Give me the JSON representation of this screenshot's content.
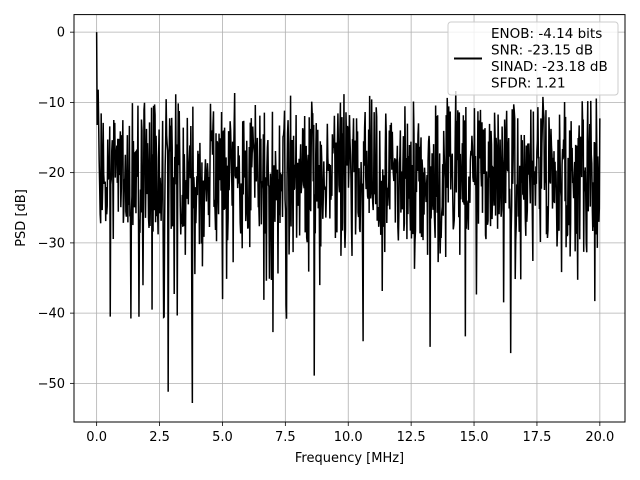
{
  "chart_data": {
    "type": "line",
    "title": "",
    "xlabel": "Frequency [MHz]",
    "ylabel": "PSD [dB]",
    "xlim": [
      -0.9,
      21.0
    ],
    "ylim": [
      -55.5,
      2.5
    ],
    "xticks": [
      0.0,
      2.5,
      5.0,
      7.5,
      10.0,
      12.5,
      15.0,
      17.5,
      20.0
    ],
    "xtick_labels": [
      "0.0",
      "2.5",
      "5.0",
      "7.5",
      "10.0",
      "12.5",
      "15.0",
      "17.5",
      "20.0"
    ],
    "yticks": [
      0,
      -10,
      -20,
      -30,
      -40,
      -50
    ],
    "ytick_labels": [
      "0",
      "−10",
      "−20",
      "−30",
      "−40",
      "−50"
    ],
    "grid": true,
    "legend_position": "top-right",
    "series": [
      {
        "color": "#000000",
        "description": "noisy PSD trace, peak near 0 dB at 0 MHz, mostly between -10 and -35 dB",
        "x_range": [
          0.0,
          20.0
        ],
        "points": 1000,
        "min_points": [
          {
            "x": 0.55,
            "y": -40.5
          },
          {
            "x": 2.2,
            "y": -39.5
          },
          {
            "x": 2.85,
            "y": -51.2
          },
          {
            "x": 3.8,
            "y": -52.8
          },
          {
            "x": 5.0,
            "y": -38.0
          },
          {
            "x": 7.0,
            "y": -42.7
          },
          {
            "x": 7.55,
            "y": -40.8
          },
          {
            "x": 8.65,
            "y": -48.9
          },
          {
            "x": 10.6,
            "y": -44.0
          },
          {
            "x": 13.25,
            "y": -44.8
          },
          {
            "x": 16.45,
            "y": -45.7
          },
          {
            "x": 19.8,
            "y": -38.3
          }
        ]
      }
    ],
    "legend": [
      "ENOB: -4.14 bits\nSNR: -23.15 dB\nSINAD: -23.18 dB\nSFDR: 1.21"
    ]
  }
}
